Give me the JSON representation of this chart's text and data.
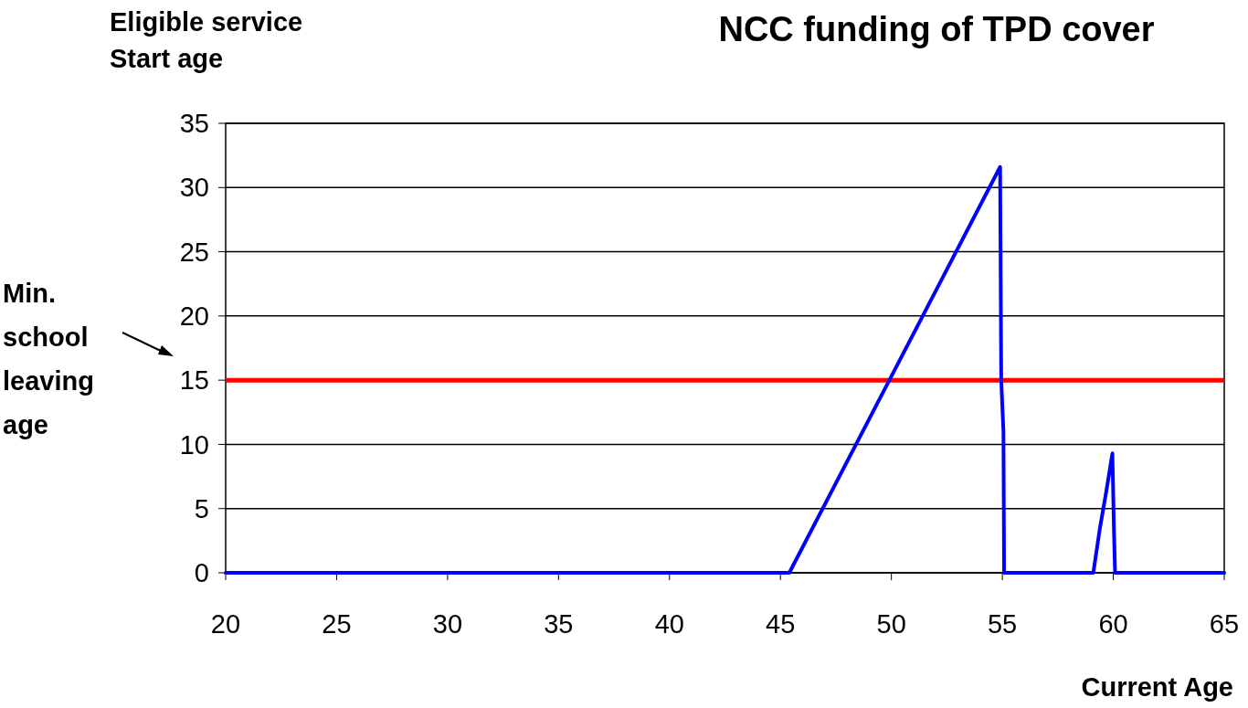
{
  "chart_data": {
    "type": "line",
    "title": "NCC funding of TPD cover",
    "xlabel": "Current Age",
    "ylabel": "Eligible service Start age",
    "series": [
      {
        "color": "#0000ff",
        "x": [
          20,
          45.4,
          50,
          54.9,
          54.95,
          55.05,
          55.08,
          59.1,
          59.4,
          59.7,
          59.96,
          60.03,
          60.08,
          65
        ],
        "values": [
          0,
          0,
          15.3,
          31.6,
          15,
          11,
          0,
          0,
          3.5,
          6.5,
          9.3,
          3.3,
          0,
          0
        ]
      }
    ],
    "xlim": [
      20,
      65
    ],
    "xticks": [
      20,
      25,
      30,
      35,
      40,
      45,
      50,
      55,
      60,
      65
    ],
    "ylim": [
      0,
      35
    ],
    "yticks": [
      0,
      5,
      10,
      15,
      20,
      25,
      30,
      35
    ],
    "grid": "y",
    "marker": "none",
    "line_style": "solid",
    "annotations": [
      "Min. school leaving age"
    ],
    "ref_lines": [
      {
        "axis": "y",
        "value": 15,
        "color": "#ff0000"
      }
    ]
  }
}
